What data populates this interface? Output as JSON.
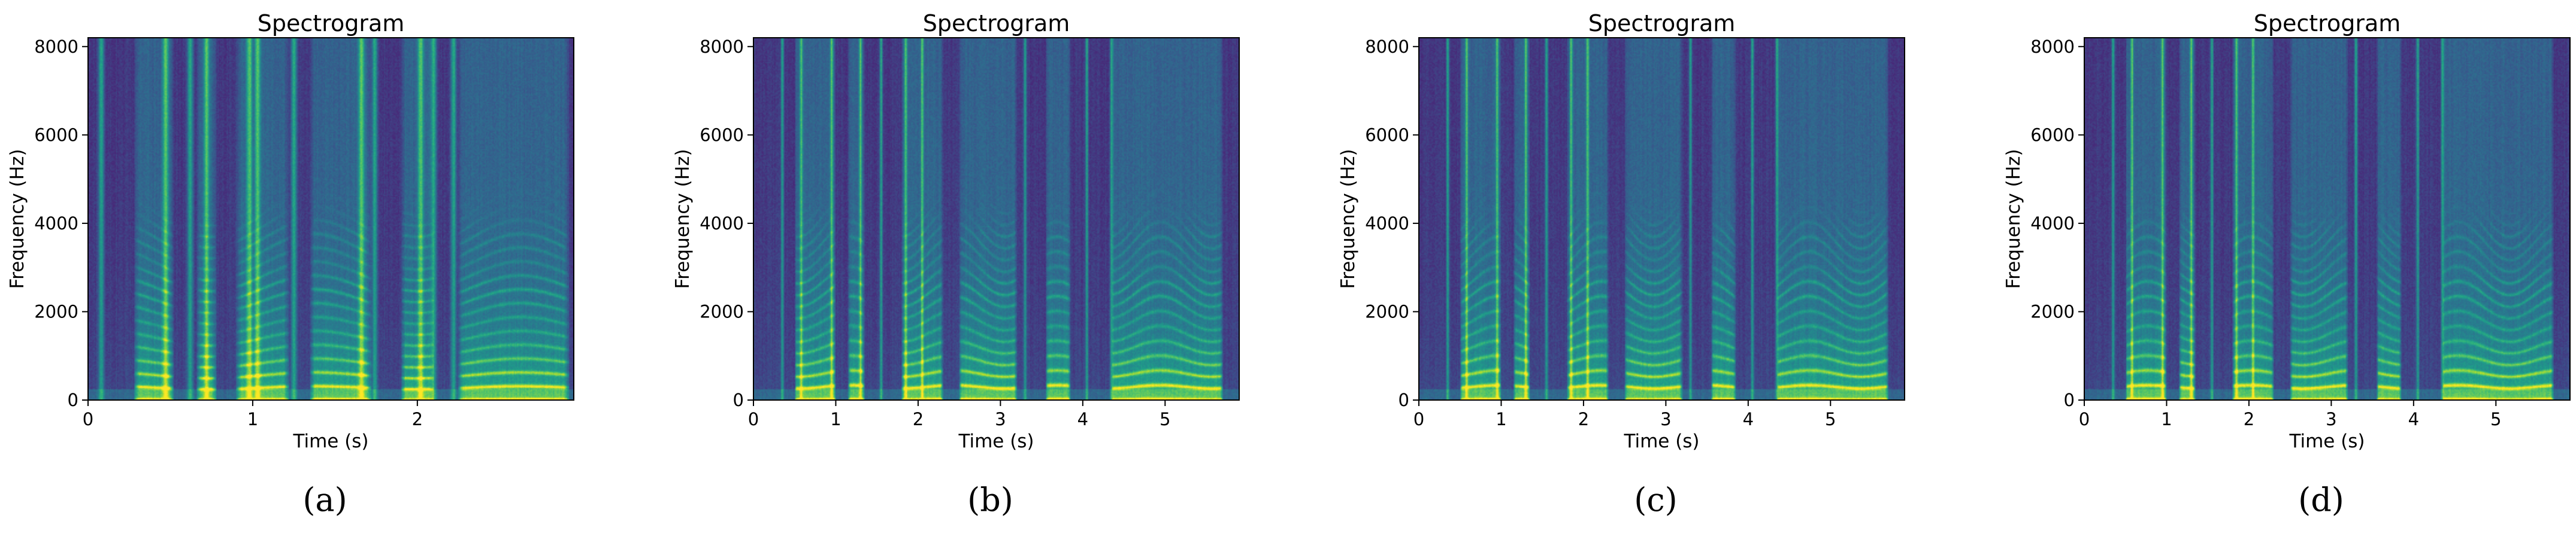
{
  "figure": {
    "panels": [
      {
        "caption": "(a)"
      },
      {
        "caption": "(b)"
      },
      {
        "caption": "(c)"
      },
      {
        "caption": "(d)"
      }
    ]
  },
  "chart_data": [
    {
      "type": "heatmap",
      "title": "Spectrogram",
      "xlabel": "Time (s)",
      "ylabel": "Frequency (Hz)",
      "xlim": [
        0,
        2.95
      ],
      "ylim": [
        0,
        8200
      ],
      "xticks": [
        0,
        1,
        2
      ],
      "yticks": [
        0,
        2000,
        4000,
        6000,
        8000
      ],
      "colormap": "viridis",
      "harmonic_spacing_hz": 280,
      "voiced_segments_s": [
        [
          0.28,
          0.52
        ],
        [
          0.66,
          0.78
        ],
        [
          0.9,
          1.22
        ],
        [
          1.35,
          1.72
        ],
        [
          1.9,
          2.1
        ],
        [
          2.25,
          2.92
        ]
      ],
      "bursts_s": [
        0.08,
        0.47,
        0.62,
        0.72,
        0.98,
        1.03,
        1.25,
        1.66,
        1.74,
        2.02,
        2.1,
        2.22
      ]
    },
    {
      "type": "heatmap",
      "title": "Spectrogram",
      "xlabel": "Time (s)",
      "ylabel": "Frequency (Hz)",
      "xlim": [
        0,
        5.9
      ],
      "ylim": [
        0,
        8200
      ],
      "xticks": [
        0,
        1,
        2,
        3,
        4,
        5
      ],
      "yticks": [
        0,
        2000,
        4000,
        6000,
        8000
      ],
      "colormap": "viridis",
      "harmonic_spacing_hz": 300,
      "voiced_segments_s": [
        [
          0.5,
          1.0
        ],
        [
          1.15,
          1.35
        ],
        [
          1.8,
          2.3
        ],
        [
          2.5,
          3.2
        ],
        [
          3.55,
          3.85
        ],
        [
          4.35,
          5.7
        ]
      ],
      "bursts_s": [
        0.35,
        0.58,
        0.95,
        1.3,
        1.55,
        1.85,
        2.05,
        3.3,
        4.05,
        4.35
      ]
    },
    {
      "type": "heatmap",
      "title": "Spectrogram",
      "xlabel": "Time (s)",
      "ylabel": "Frequency (Hz)",
      "xlim": [
        0,
        5.9
      ],
      "ylim": [
        0,
        8200
      ],
      "xticks": [
        0,
        1,
        2,
        3,
        4,
        5
      ],
      "yticks": [
        0,
        2000,
        4000,
        6000,
        8000
      ],
      "colormap": "viridis",
      "harmonic_spacing_hz": 300,
      "voiced_segments_s": [
        [
          0.5,
          1.0
        ],
        [
          1.15,
          1.35
        ],
        [
          1.8,
          2.3
        ],
        [
          2.5,
          3.2
        ],
        [
          3.55,
          3.85
        ],
        [
          4.35,
          5.7
        ]
      ],
      "bursts_s": [
        0.35,
        0.58,
        0.95,
        1.3,
        1.55,
        1.85,
        2.05,
        3.3,
        4.05,
        4.35
      ]
    },
    {
      "type": "heatmap",
      "title": "Spectrogram",
      "xlabel": "Time (s)",
      "ylabel": "Frequency (Hz)",
      "xlim": [
        0,
        5.9
      ],
      "ylim": [
        0,
        8200
      ],
      "xticks": [
        0,
        1,
        2,
        3,
        4,
        5
      ],
      "yticks": [
        0,
        2000,
        4000,
        6000,
        8000
      ],
      "colormap": "viridis",
      "harmonic_spacing_hz": 300,
      "voiced_segments_s": [
        [
          0.5,
          1.0
        ],
        [
          1.15,
          1.35
        ],
        [
          1.8,
          2.3
        ],
        [
          2.5,
          3.2
        ],
        [
          3.55,
          3.85
        ],
        [
          4.35,
          5.7
        ]
      ],
      "bursts_s": [
        0.35,
        0.58,
        0.95,
        1.3,
        1.55,
        1.85,
        2.05,
        3.3,
        4.05,
        4.35
      ]
    }
  ]
}
